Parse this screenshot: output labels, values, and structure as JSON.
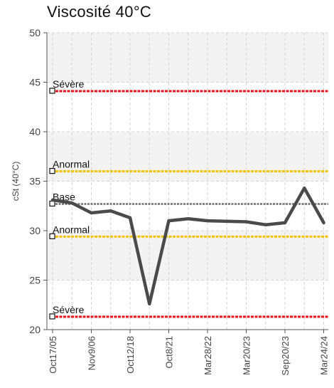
{
  "chart_data": {
    "type": "line",
    "title": "Viscosité 40°C",
    "ylabel": "cSt (40°C)",
    "xlabel": "",
    "ylim": [
      20,
      50
    ],
    "yticks": [
      20,
      25,
      30,
      35,
      40,
      45,
      50
    ],
    "grid": true,
    "x_tick_labels": [
      "Oct17/05",
      "Nov9/06",
      "Oct12/18",
      "Oct8/21",
      "Mar28/22",
      "Mar20/23",
      "Sep20/23",
      "Mar24/24"
    ],
    "x_tick_positions": [
      0,
      1,
      2,
      3,
      4,
      5,
      6,
      7
    ],
    "series": [
      {
        "values": [
          {
            "x": 0,
            "y": 33.1
          },
          {
            "x": 0.5,
            "y": 32.8
          },
          {
            "x": 1,
            "y": 31.8
          },
          {
            "x": 1.5,
            "y": 32.0
          },
          {
            "x": 2,
            "y": 31.3
          },
          {
            "x": 2.5,
            "y": 22.6
          },
          {
            "x": 3,
            "y": 31.0
          },
          {
            "x": 3.5,
            "y": 31.2
          },
          {
            "x": 4,
            "y": 31.0
          },
          {
            "x": 5,
            "y": 30.9
          },
          {
            "x": 5.5,
            "y": 30.6
          },
          {
            "x": 6,
            "y": 30.8
          },
          {
            "x": 6.5,
            "y": 34.3
          },
          {
            "x": 7,
            "y": 30.8
          }
        ],
        "color": "#4a4a4a"
      }
    ],
    "reference_lines": [
      {
        "label": "Sévère",
        "value": 44.1,
        "color": "#e8141b"
      },
      {
        "label": "Anormal",
        "value": 36.0,
        "color": "#f2c200"
      },
      {
        "label": "Base",
        "value": 32.7,
        "color": "#6e6e6e"
      },
      {
        "label": "Anormal",
        "value": 29.4,
        "color": "#f2c200"
      },
      {
        "label": "Sévère",
        "value": 21.3,
        "color": "#e8141b"
      }
    ]
  }
}
